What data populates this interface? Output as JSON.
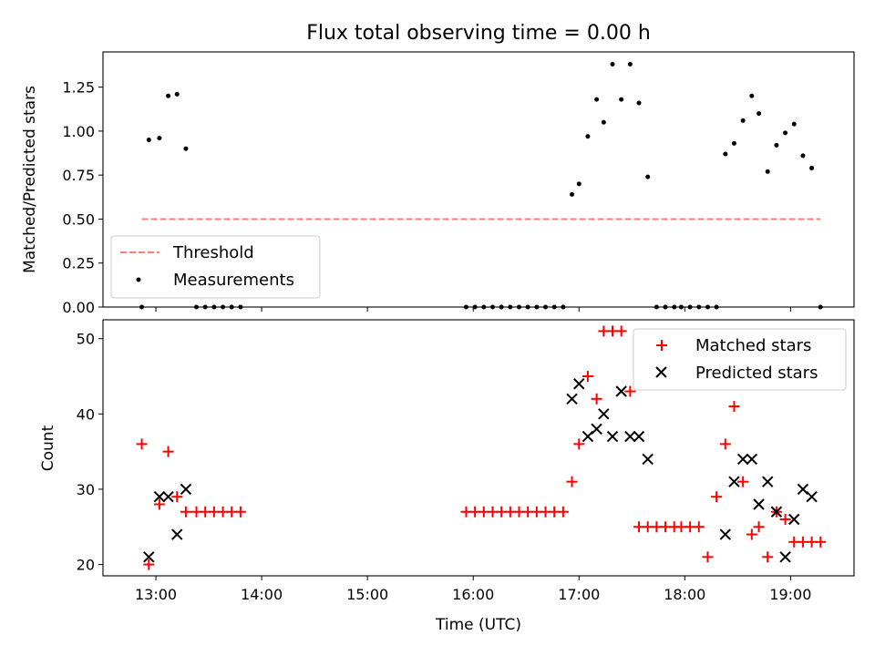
{
  "chart_data": [
    {
      "type": "scatter",
      "title": "Flux total observing time = 0.00 h",
      "xlabel": "",
      "ylabel": "Matched/Predicted stars",
      "xlim": [
        "12:30",
        "19:36"
      ],
      "ylim": [
        0,
        1.45
      ],
      "yticks": [
        0.0,
        0.25,
        0.5,
        0.75,
        1.0,
        1.25
      ],
      "ytick_labels": [
        "0.00",
        "0.25",
        "0.50",
        "0.75",
        "1.00",
        "1.25"
      ],
      "legend_position": "lower-left",
      "series": [
        {
          "name": "Threshold",
          "style": "dashed-line",
          "color": "#ff7f7f",
          "x": [
            "12:52",
            "19:17"
          ],
          "y": [
            0.5,
            0.5
          ]
        },
        {
          "name": "Measurements",
          "style": "dot",
          "color": "#000000",
          "x": [
            "12:52",
            "12:56",
            "13:02",
            "13:07",
            "13:12",
            "13:17",
            "13:23",
            "13:28",
            "13:33",
            "13:38",
            "13:43",
            "13:48",
            "15:56",
            "16:01",
            "16:06",
            "16:11",
            "16:16",
            "16:21",
            "16:26",
            "16:31",
            "16:36",
            "16:41",
            "16:46",
            "16:51",
            "16:56",
            "17:00",
            "17:05",
            "17:10",
            "17:14",
            "17:19",
            "17:24",
            "17:29",
            "17:34",
            "17:39",
            "17:44",
            "17:49",
            "17:54",
            "17:58",
            "18:03",
            "18:08",
            "18:13",
            "18:18",
            "18:23",
            "18:28",
            "18:33",
            "18:38",
            "18:42",
            "18:47",
            "18:52",
            "18:57",
            "19:02",
            "19:07",
            "19:12",
            "19:17"
          ],
          "y": [
            0.0,
            0.95,
            0.96,
            1.2,
            1.21,
            0.9,
            0.0,
            0.0,
            0.0,
            0.0,
            0.0,
            0.0,
            0.0,
            0.0,
            0.0,
            0.0,
            0.0,
            0.0,
            0.0,
            0.0,
            0.0,
            0.0,
            0.0,
            0.0,
            0.64,
            0.7,
            0.97,
            1.18,
            1.05,
            1.38,
            1.18,
            1.38,
            1.16,
            0.74,
            0.0,
            0.0,
            0.0,
            0.0,
            0.0,
            0.0,
            0.0,
            0.0,
            0.87,
            0.93,
            1.06,
            1.2,
            1.1,
            0.77,
            0.92,
            0.99,
            1.04,
            0.86,
            0.79,
            0.0
          ]
        }
      ]
    },
    {
      "type": "scatter",
      "title": "",
      "xlabel": "Time (UTC)",
      "ylabel": "Count",
      "xlim": [
        "12:30",
        "19:36"
      ],
      "ylim": [
        18.5,
        52.5
      ],
      "yticks": [
        20,
        30,
        40,
        50
      ],
      "ytick_labels": [
        "20",
        "30",
        "40",
        "50"
      ],
      "xticks": [
        "13:00",
        "14:00",
        "15:00",
        "16:00",
        "17:00",
        "18:00",
        "19:00"
      ],
      "xtick_labels": [
        "13:00",
        "14:00",
        "15:00",
        "16:00",
        "17:00",
        "18:00",
        "19:00"
      ],
      "legend_position": "upper-right",
      "series": [
        {
          "name": "Matched stars",
          "style": "plus",
          "color": "#ff0000",
          "x": [
            "12:52",
            "12:56",
            "13:02",
            "13:07",
            "13:12",
            "13:17",
            "13:23",
            "13:28",
            "13:33",
            "13:38",
            "13:43",
            "13:48",
            "15:56",
            "16:01",
            "16:06",
            "16:11",
            "16:16",
            "16:21",
            "16:26",
            "16:31",
            "16:36",
            "16:41",
            "16:46",
            "16:51",
            "16:56",
            "17:00",
            "17:05",
            "17:10",
            "17:14",
            "17:19",
            "17:24",
            "17:29",
            "17:34",
            "17:39",
            "17:44",
            "17:49",
            "17:54",
            "17:58",
            "18:03",
            "18:08",
            "18:13",
            "18:18",
            "18:23",
            "18:28",
            "18:33",
            "18:38",
            "18:42",
            "18:47",
            "18:52",
            "18:57",
            "19:02",
            "19:07",
            "19:12",
            "19:17"
          ],
          "y": [
            36,
            20,
            28,
            35,
            29,
            27,
            27,
            27,
            27,
            27,
            27,
            27,
            27,
            27,
            27,
            27,
            27,
            27,
            27,
            27,
            27,
            27,
            27,
            27,
            31,
            36,
            45,
            42,
            51,
            51,
            51,
            43,
            25,
            25,
            25,
            25,
            25,
            25,
            25,
            25,
            21,
            29,
            36,
            41,
            31,
            24,
            25,
            21,
            27,
            26,
            23,
            23,
            23,
            23
          ]
        },
        {
          "name": "Predicted stars",
          "style": "x",
          "color": "#000000",
          "x": [
            "12:56",
            "13:02",
            "13:07",
            "13:12",
            "13:17",
            "16:56",
            "17:00",
            "17:05",
            "17:10",
            "17:14",
            "17:19",
            "17:24",
            "17:29",
            "17:34",
            "17:39",
            "18:23",
            "18:28",
            "18:33",
            "18:38",
            "18:42",
            "18:47",
            "18:52",
            "18:57",
            "19:02",
            "19:07",
            "19:12"
          ],
          "y": [
            21,
            29,
            29,
            24,
            30,
            42,
            44,
            37,
            38,
            40,
            37,
            43,
            37,
            37,
            34,
            24,
            31,
            34,
            34,
            28,
            31,
            27,
            21,
            26,
            30,
            29
          ]
        }
      ]
    }
  ]
}
